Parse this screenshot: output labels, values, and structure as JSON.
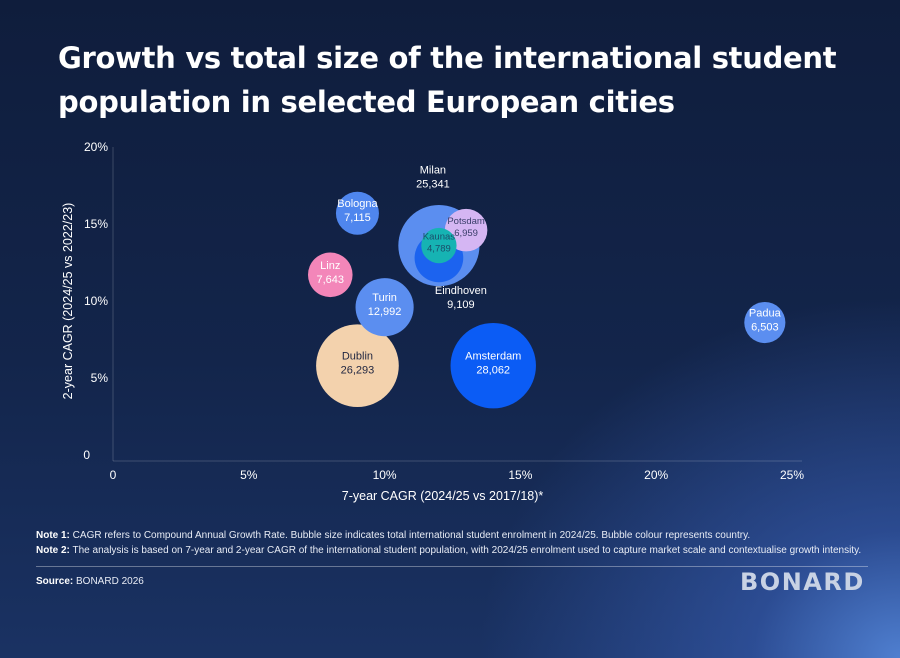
{
  "title": "Growth vs total size of the international student population in selected European cities",
  "chart_data": {
    "type": "bubble",
    "title": "Growth vs total size of the international student population in selected European cities",
    "xlabel": "7-year CAGR (2024/25 vs 2017/18)*",
    "ylabel": "2-year CAGR (2024/25 vs 2022/23)",
    "xlim": [
      0,
      25
    ],
    "ylim": [
      0,
      20
    ],
    "x_ticks": [
      "0",
      "5%",
      "10%",
      "15%",
      "20%",
      "25%"
    ],
    "y_ticks": [
      "0",
      "5%",
      "10%",
      "15%",
      "20%"
    ],
    "size_measure": "international student enrolment 2024/25",
    "points": [
      {
        "city": "Milan",
        "x": 12.0,
        "y": 13.6,
        "size": 25341,
        "size_label": "25,341",
        "color": "#5b8ef0"
      },
      {
        "city": "Bologna",
        "x": 9.0,
        "y": 15.7,
        "size": 7115,
        "size_label": "7,115",
        "color": "#4f86ee"
      },
      {
        "city": "Potsdam",
        "x": 13.0,
        "y": 14.6,
        "size": 6959,
        "size_label": "6,959",
        "color": "#d5b6f3"
      },
      {
        "city": "Eindhoven",
        "x": 12.0,
        "y": 12.8,
        "size": 9109,
        "size_label": "9,109",
        "color": "#1c63ef"
      },
      {
        "city": "Kaunas",
        "x": 12.0,
        "y": 13.6,
        "size": 4789,
        "size_label": "4,789",
        "color": "#16b3b3"
      },
      {
        "city": "Linz",
        "x": 8.0,
        "y": 11.7,
        "size": 7643,
        "size_label": "7,643",
        "color": "#f386b9"
      },
      {
        "city": "Turin",
        "x": 10.0,
        "y": 9.6,
        "size": 12992,
        "size_label": "12,992",
        "color": "#5b8ef0"
      },
      {
        "city": "Dublin",
        "x": 9.0,
        "y": 5.8,
        "size": 26293,
        "size_label": "26,293",
        "color": "#f3d2ad"
      },
      {
        "city": "Amsterdam",
        "x": 14.0,
        "y": 5.8,
        "size": 28062,
        "size_label": "28,062",
        "color": "#0b5cf5"
      },
      {
        "city": "Padua",
        "x": 24.0,
        "y": 8.6,
        "size": 6503,
        "size_label": "6,503",
        "color": "#5b8ef0"
      }
    ]
  },
  "notes": {
    "note1_label": "Note 1:",
    "note1_text": " CAGR refers to Compound Annual Growth Rate. Bubble size indicates total international student enrolment in 2024/25. Bubble colour represents country.",
    "note2_label": "Note 2:",
    "note2_text": " The analysis is based on 7-year and 2-year CAGR of the international student population, with 2024/25 enrolment used to capture market scale and contextualise growth intensity."
  },
  "source": {
    "label": "Source:",
    "text": " BONARD 2026"
  },
  "logo_text": "BONARD"
}
